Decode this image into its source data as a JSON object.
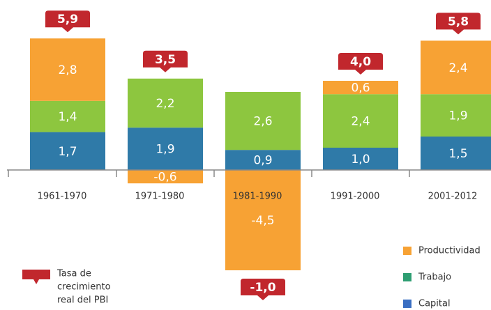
{
  "chart_data": {
    "type": "stacked_bar",
    "categories": [
      "1961-1970",
      "1971-1980",
      "1981-1990",
      "1991-2000",
      "2001-2012"
    ],
    "series": [
      {
        "name": "Capital",
        "color": "#2f7aa8",
        "legend_color": "#3a6ec2",
        "values": [
          1.7,
          1.9,
          0.9,
          1.0,
          1.5
        ],
        "value_labels": [
          "1,7",
          "1,9",
          "0,9",
          "1,0",
          "1,5"
        ]
      },
      {
        "name": "Trabajo",
        "color": "#8dc63f",
        "legend_color": "#2e9e72",
        "values": [
          1.4,
          2.2,
          2.6,
          2.4,
          1.9
        ],
        "value_labels": [
          "1,4",
          "2,2",
          "2,6",
          "2,4",
          "1,9"
        ]
      },
      {
        "name": "Productividad",
        "color": "#f7a234",
        "legend_color": "#f7a234",
        "values": [
          2.8,
          -0.6,
          -4.5,
          0.6,
          2.4
        ],
        "value_labels": [
          "2,8",
          "-0,6",
          "-4,5",
          "0,6",
          "2,4"
        ]
      }
    ],
    "totals": [
      5.9,
      3.5,
      -1.0,
      4.0,
      5.8
    ],
    "totals_labels": [
      "5,9",
      "3,5",
      "-1,0",
      "4,0",
      "5,8"
    ],
    "totals_color": "#c1272d",
    "totals_legend": [
      "Tasa de",
      "crecimiento",
      "real del PBI"
    ]
  }
}
